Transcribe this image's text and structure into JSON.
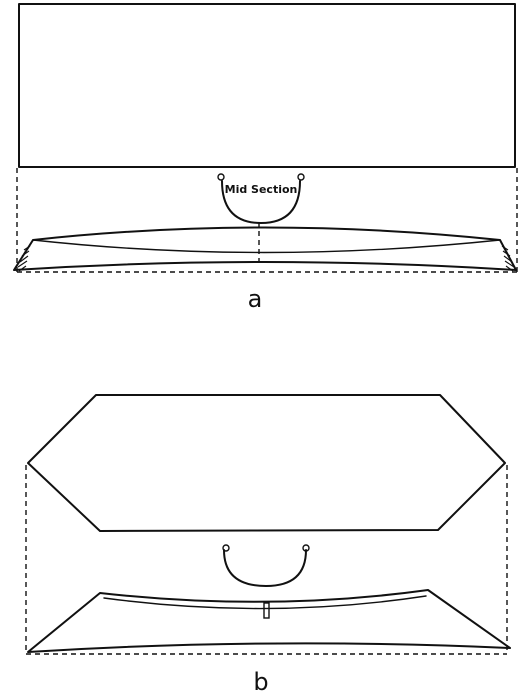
{
  "figure_a": {
    "section_label": "Mid Section",
    "caption": "a"
  },
  "figure_b": {
    "caption": "b"
  }
}
